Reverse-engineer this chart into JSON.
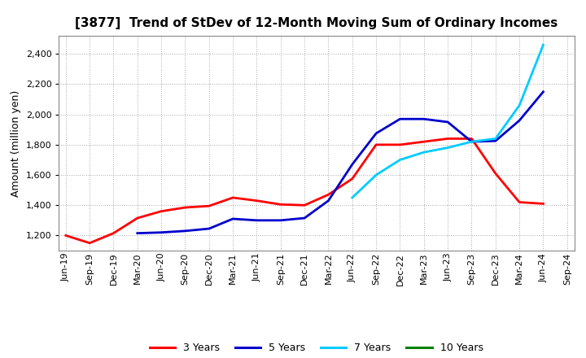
{
  "title": "[3877]  Trend of StDev of 12-Month Moving Sum of Ordinary Incomes",
  "ylabel": "Amount (million yen)",
  "background_color": "#ffffff",
  "plot_bg_color": "#ffffff",
  "grid_color": "#aaaaaa",
  "ylim": [
    1100,
    2520
  ],
  "yticks": [
    1200,
    1400,
    1600,
    1800,
    2000,
    2200,
    2400
  ],
  "x_labels": [
    "Jun-19",
    "Sep-19",
    "Dec-19",
    "Mar-20",
    "Jun-20",
    "Sep-20",
    "Dec-20",
    "Mar-21",
    "Jun-21",
    "Sep-21",
    "Dec-21",
    "Mar-22",
    "Jun-22",
    "Sep-22",
    "Dec-22",
    "Mar-23",
    "Jun-23",
    "Sep-23",
    "Dec-23",
    "Mar-24",
    "Jun-24",
    "Sep-24"
  ],
  "series": {
    "3 Years": {
      "color": "#ff0000",
      "data": [
        1200,
        1150,
        1215,
        1315,
        1360,
        1385,
        1395,
        1450,
        1430,
        1405,
        1400,
        1470,
        1575,
        1800,
        1800,
        1820,
        1840,
        1840,
        1610,
        1420,
        1410,
        null
      ]
    },
    "5 Years": {
      "color": "#0000cc",
      "data": [
        null,
        null,
        null,
        1215,
        1220,
        1230,
        1245,
        1310,
        1300,
        1300,
        1315,
        1430,
        1670,
        1875,
        1970,
        1970,
        1950,
        1820,
        1825,
        1960,
        2150,
        null
      ]
    },
    "7 Years": {
      "color": "#00ccff",
      "data": [
        null,
        null,
        null,
        null,
        null,
        null,
        null,
        null,
        null,
        null,
        null,
        null,
        1450,
        1600,
        1700,
        1750,
        1780,
        1820,
        1840,
        2060,
        2460,
        null
      ]
    },
    "10 Years": {
      "color": "#008000",
      "data": [
        null,
        null,
        null,
        null,
        null,
        null,
        null,
        null,
        null,
        null,
        null,
        null,
        null,
        null,
        null,
        null,
        null,
        null,
        null,
        null,
        null,
        null
      ]
    }
  },
  "legend_order": [
    "3 Years",
    "5 Years",
    "7 Years",
    "10 Years"
  ],
  "legend_colors": [
    "#ff0000",
    "#0000cc",
    "#00ccff",
    "#008000"
  ],
  "title_fontsize": 11,
  "axis_label_fontsize": 9,
  "tick_fontsize": 8,
  "legend_fontsize": 9,
  "linewidth": 2.0
}
